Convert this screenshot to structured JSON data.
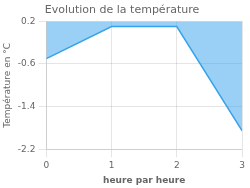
{
  "chart_data": {
    "type": "area",
    "title": "Evolution de la température",
    "xlabel": "heure par heure",
    "ylabel": "Température en °C",
    "x": [
      0,
      1,
      2,
      3
    ],
    "values": [
      -0.5,
      0.1,
      0.1,
      -1.85
    ],
    "xlim": [
      0,
      3
    ],
    "xticks": [
      0,
      1,
      2,
      3
    ],
    "ylim": [
      -2.2,
      0.2
    ],
    "yticks": [
      0.2,
      -0.6,
      -1.4,
      -2.2
    ],
    "grid": true
  }
}
